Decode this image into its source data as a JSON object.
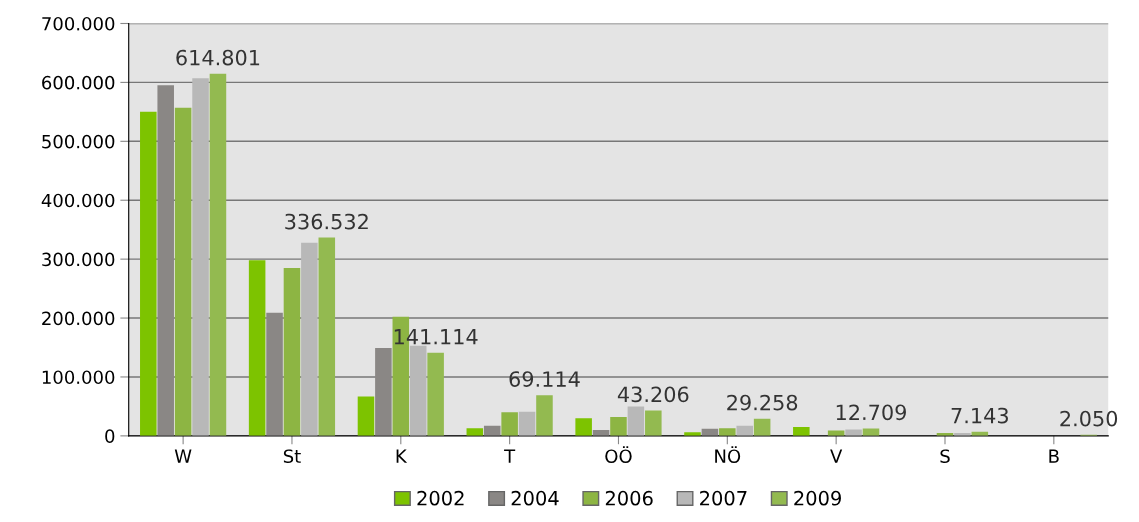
{
  "chart_data": {
    "type": "bar",
    "categories": [
      "W",
      "St",
      "K",
      "T",
      "OÖ",
      "NÖ",
      "V",
      "S",
      "B"
    ],
    "series": [
      {
        "name": "2002",
        "color": "#7dc300",
        "values": [
          550000,
          298000,
          67000,
          13000,
          30000,
          6000,
          15000,
          null,
          0
        ]
      },
      {
        "name": "2004",
        "color": "#8a8785",
        "values": [
          595000,
          209000,
          149000,
          17000,
          10000,
          12000,
          null,
          null,
          0
        ]
      },
      {
        "name": "2006",
        "color": "#8db543",
        "values": [
          557000,
          285000,
          202000,
          40000,
          32000,
          13000,
          9000,
          5000,
          null
        ]
      },
      {
        "name": "2007",
        "color": "#b8b8b8",
        "values": [
          607000,
          328000,
          153000,
          41000,
          50000,
          17000,
          11000,
          5000,
          null
        ]
      },
      {
        "name": "2009",
        "color": "#93ba50",
        "values": [
          614801,
          336532,
          141114,
          69114,
          43206,
          29258,
          12709,
          7143,
          2050
        ],
        "value_labels": [
          "614.801",
          "336.532",
          "141.114",
          "69.114",
          "43.206",
          "29.258",
          "12.709",
          "7.143",
          "2.050"
        ]
      }
    ],
    "ylim": [
      0,
      700000
    ],
    "yticks": [
      {
        "value": 0,
        "label": "0"
      },
      {
        "value": 100000,
        "label": "100.000"
      },
      {
        "value": 200000,
        "label": "200.000"
      },
      {
        "value": 300000,
        "label": "300.000"
      },
      {
        "value": 400000,
        "label": "400.000"
      },
      {
        "value": 500000,
        "label": "500.000"
      },
      {
        "value": 600000,
        "label": "600.000"
      },
      {
        "value": 700000,
        "label": "700.000"
      }
    ],
    "grid": "y",
    "legend": "bottom"
  }
}
